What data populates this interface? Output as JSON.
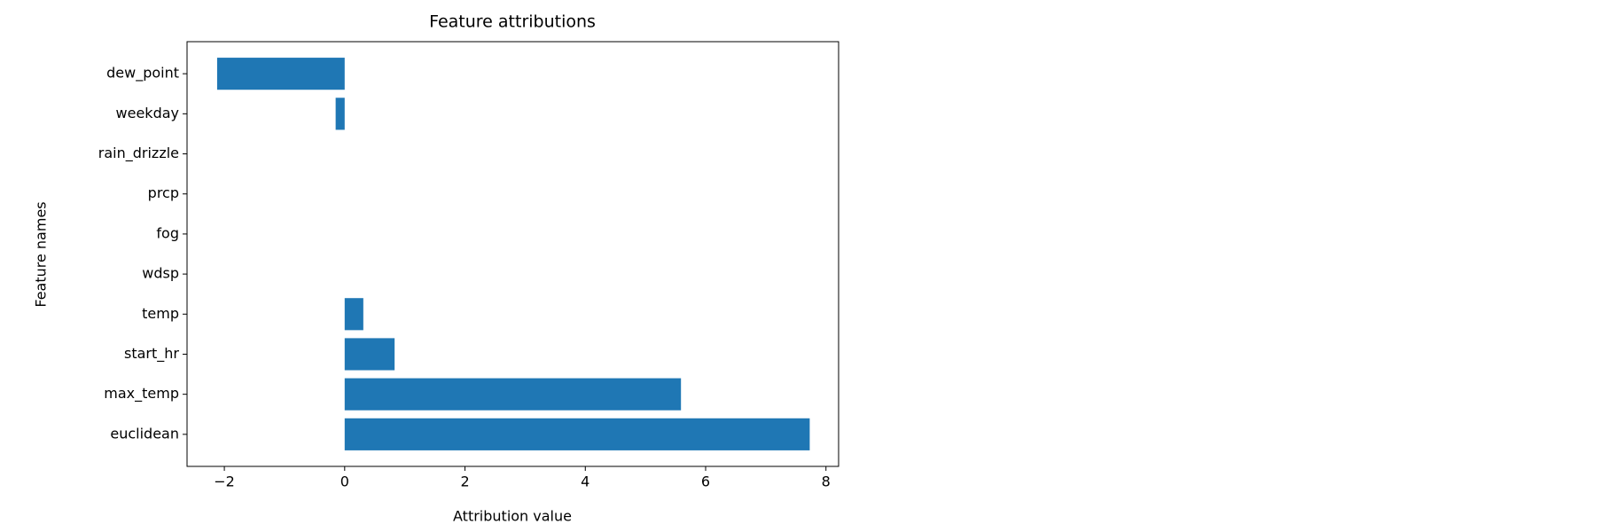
{
  "chart_data": {
    "type": "barh",
    "title": "Feature attributions",
    "xlabel": "Attribution value",
    "ylabel": "Feature names",
    "categories": [
      "dew_point",
      "weekday",
      "rain_drizzle",
      "prcp",
      "fog",
      "wdsp",
      "temp",
      "start_hr",
      "max_temp",
      "euclidean"
    ],
    "values": [
      -2.12,
      -0.15,
      0,
      0,
      0,
      0,
      0.31,
      0.83,
      5.59,
      7.73
    ],
    "color": "#1f77b4",
    "xlim": [
      -2.62,
      8.21
    ],
    "xticks": [
      {
        "value": -2,
        "label": "−2"
      },
      0,
      2,
      4,
      6,
      8
    ]
  }
}
